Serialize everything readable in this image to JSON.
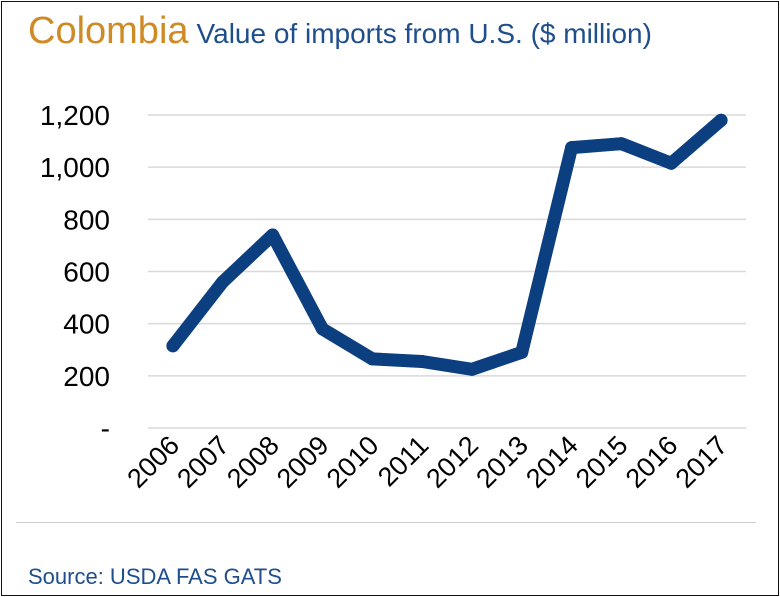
{
  "header": {
    "country": "Colombia",
    "subtitle": "Value of imports from U.S. ($ million)"
  },
  "footer": {
    "source": "Source: USDA FAS GATS"
  },
  "colors": {
    "line": "#0c3f7f",
    "grid": "#d9d9d9",
    "axis_text": "#000000",
    "country": "#d08a24",
    "subtitle": "#1e4e8c"
  },
  "chart_data": {
    "type": "line",
    "title": "Value of imports from U.S. ($ million)",
    "xlabel": "",
    "ylabel": "",
    "categories": [
      "2006",
      "2007",
      "2008",
      "2009",
      "2010",
      "2011",
      "2012",
      "2013",
      "2014",
      "2015",
      "2016",
      "2017"
    ],
    "series": [
      {
        "values": [
          315,
          560,
          740,
          380,
          265,
          255,
          225,
          290,
          1075,
          1090,
          1015,
          1180
        ]
      }
    ],
    "ylim": [
      0,
      1200
    ],
    "yticks": [
      0,
      200,
      400,
      600,
      800,
      1000,
      1200
    ],
    "ytick_labels": [
      "-",
      "200",
      "400",
      "600",
      "800",
      "1,000",
      "1,200"
    ],
    "grid": true,
    "legend": "none"
  }
}
